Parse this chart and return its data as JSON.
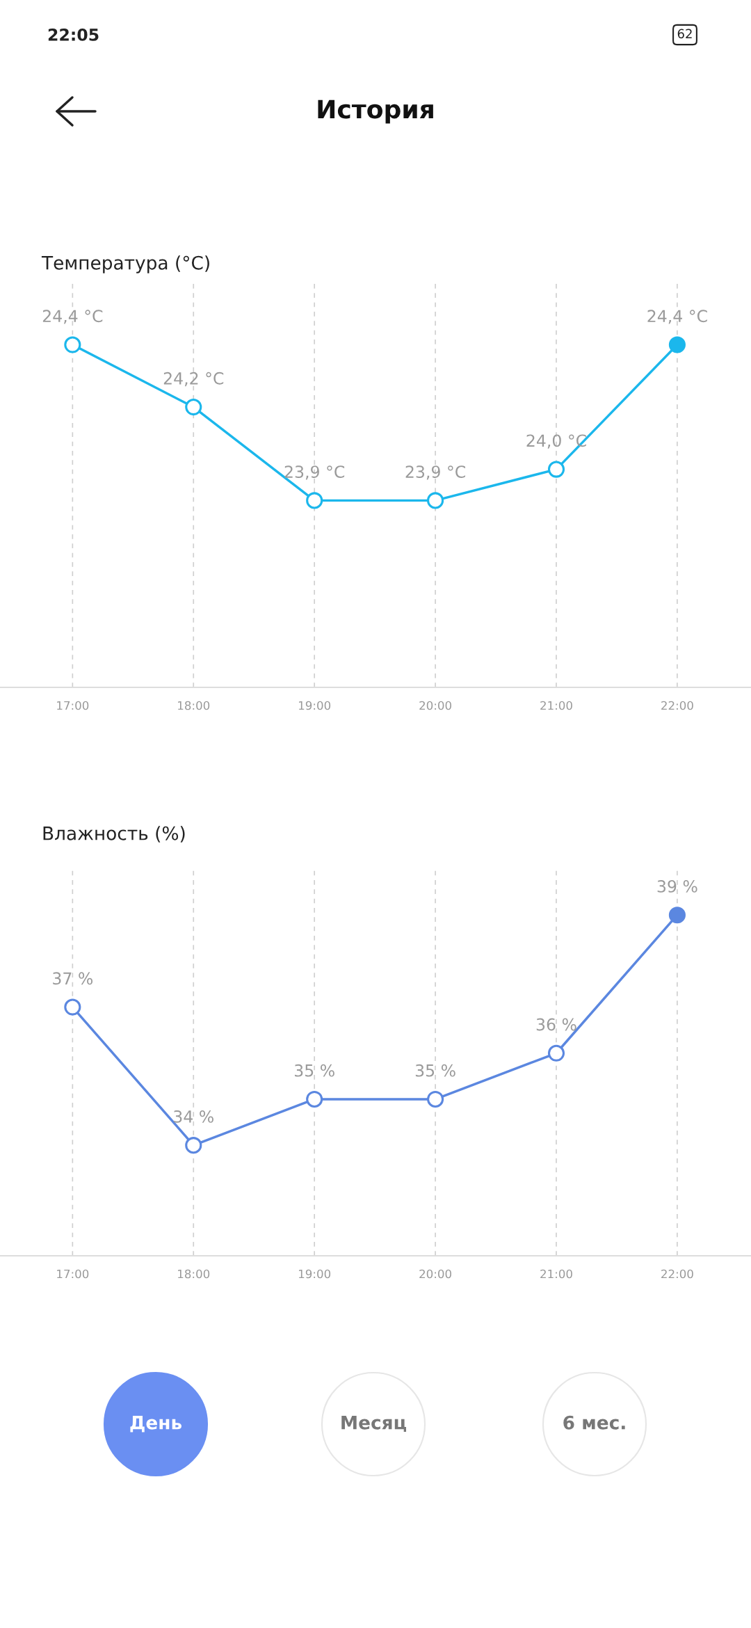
{
  "chart_data": [
    {
      "type": "line",
      "title": "Температура (°C)",
      "x": [
        17,
        18,
        19,
        20,
        21,
        22
      ],
      "xlim": [
        16.4,
        22.61
      ],
      "xticks": [
        {
          "value": 17,
          "label": "17:00"
        },
        {
          "value": 18,
          "label": "18:00"
        },
        {
          "value": 19,
          "label": "19:00"
        },
        {
          "value": 20,
          "label": "20:00"
        },
        {
          "value": 21,
          "label": "21:00"
        },
        {
          "value": 22,
          "label": "22:00"
        }
      ],
      "ylim": [
        23.3,
        24.6
      ],
      "tick_labels": "x",
      "grid": "x",
      "marker": "circle",
      "line_style": "solid",
      "series": [
        {
          "color": "#1bb7ec",
          "values": [
            24.4,
            24.2,
            23.9,
            23.9,
            24.0,
            24.4
          ],
          "value_labels": [
            "24,4 °C",
            "24,2 °C",
            "23,9 °C",
            "23,9 °C",
            "24,0 °C",
            "24,4 °C"
          ]
        }
      ],
      "annotations": [
        "22:05",
        "62",
        "История"
      ]
    },
    {
      "type": "line",
      "title": "Влажность (%)",
      "x": [
        17,
        18,
        19,
        20,
        21,
        22
      ],
      "xlim": [
        16.4,
        22.61
      ],
      "xticks": [
        {
          "value": 17,
          "label": "17:00"
        },
        {
          "value": 18,
          "label": "18:00"
        },
        {
          "value": 19,
          "label": "19:00"
        },
        {
          "value": 20,
          "label": "20:00"
        },
        {
          "value": 21,
          "label": "21:00"
        },
        {
          "value": 22,
          "label": "22:00"
        }
      ],
      "ylim": [
        31.6,
        40
      ],
      "tick_labels": "x",
      "grid": "x",
      "marker": "circle",
      "line_style": "solid",
      "series": [
        {
          "color": "#5b87e0",
          "values": [
            37,
            34,
            35,
            35,
            36,
            39
          ],
          "value_labels": [
            "37 %",
            "34 %",
            "35 %",
            "35 %",
            "36 %",
            "39 %"
          ]
        }
      ],
      "annotations": [
        "День",
        "Месяц",
        "6 мес."
      ]
    }
  ]
}
